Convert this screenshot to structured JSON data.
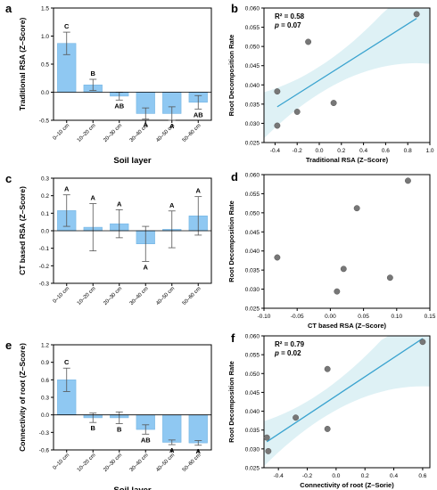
{
  "colors": {
    "bar": "#8fc8f2",
    "bar_edge": "#6aaee0",
    "line": "#3aa3cf",
    "band": "#def1f5",
    "point": "#777777",
    "point_edge": "#555555",
    "axis": "#000000"
  },
  "chart_data": [
    {
      "panel": "a",
      "type": "bar",
      "categories": [
        "0–10 cm",
        "10–20 cm",
        "20–30 cm",
        "30–40 cm",
        "40–50 cm",
        "50–60 cm"
      ],
      "values": [
        0.87,
        0.13,
        -0.07,
        -0.38,
        -0.38,
        -0.18
      ],
      "errors": [
        0.2,
        0.1,
        0.07,
        0.1,
        0.12,
        0.12
      ],
      "letters": [
        "C",
        "B",
        "AB",
        "A",
        "A",
        "AB"
      ],
      "xlabel": "Soil layer",
      "ylabel": "Traditional RSA (Z–Score)",
      "ylim": [
        -0.5,
        1.5
      ],
      "yticks": [
        "-0.5",
        "0.0",
        "0.5",
        "1.0",
        "1.5"
      ]
    },
    {
      "panel": "b",
      "type": "scatter",
      "x": [
        -0.38,
        -0.38,
        -0.2,
        -0.1,
        0.13,
        0.88
      ],
      "y": [
        0.0383,
        0.0294,
        0.033,
        0.0512,
        0.0353,
        0.0584
      ],
      "fit": {
        "x": [
          -0.38,
          0.88
        ],
        "y": [
          0.0343,
          0.0573
        ]
      },
      "stats": [
        "R² = 0.58",
        "p = 0.07"
      ],
      "xlabel": "Traditional RSA (Z–Score)",
      "ylabel": "Root Decomposition Rate",
      "xlim": [
        -0.5,
        1.0
      ],
      "ylim": [
        0.025,
        0.06
      ],
      "xticks": [
        "-0.4",
        "-0.2",
        "0.0",
        "0.2",
        "0.4",
        "0.6",
        "0.8",
        "1.0"
      ],
      "yticks": [
        "0.025",
        "0.030",
        "0.035",
        "0.040",
        "0.045",
        "0.050",
        "0.055",
        "0.060"
      ]
    },
    {
      "panel": "c",
      "type": "bar",
      "categories": [
        "0–10 cm",
        "10–20 cm",
        "20–30 cm",
        "30–40 cm",
        "40–50 cm",
        "50–60 cm"
      ],
      "values": [
        0.115,
        0.02,
        0.04,
        -0.075,
        0.008,
        0.085
      ],
      "errors": [
        0.09,
        0.135,
        0.08,
        0.1,
        0.105,
        0.11
      ],
      "letters": [
        "A",
        "A",
        "A",
        "A",
        "A",
        "A"
      ],
      "xlabel": "",
      "ylabel": "CT based RSA (Z–Score)",
      "ylim": [
        -0.3,
        0.3
      ],
      "yticks": [
        "-0.3",
        "-0.2",
        "-0.1",
        "0.0",
        "0.1",
        "0.2",
        "0.3"
      ]
    },
    {
      "panel": "d",
      "type": "scatter",
      "x": [
        -0.08,
        0.01,
        0.02,
        0.04,
        0.09,
        0.117
      ],
      "y": [
        0.0383,
        0.0294,
        0.0353,
        0.0512,
        0.033,
        0.0584
      ],
      "xlabel": "CT based RSA (Z–Score)",
      "ylabel": "Root Decomposition Rate",
      "xlim": [
        -0.1,
        0.15
      ],
      "ylim": [
        0.025,
        0.06
      ],
      "xticks": [
        "-0.10",
        "-0.05",
        "0.00",
        "0.05",
        "0.10",
        "0.15"
      ],
      "yticks": [
        "0.025",
        "0.030",
        "0.035",
        "0.040",
        "0.045",
        "0.050",
        "0.055",
        "0.060"
      ]
    },
    {
      "panel": "e",
      "type": "bar",
      "categories": [
        "0–10 cm",
        "10–20 cm",
        "20–30 cm",
        "30–40 cm",
        "40–50 cm",
        "50–60 cm"
      ],
      "values": [
        0.6,
        -0.05,
        -0.05,
        -0.25,
        -0.47,
        -0.48
      ],
      "errors": [
        0.2,
        0.08,
        0.1,
        0.08,
        0.04,
        0.04
      ],
      "letters": [
        "C",
        "B",
        "B",
        "AB",
        "A",
        "A"
      ],
      "xlabel": "Soil layer",
      "ylabel": "Connectivity of root (Z–Score)",
      "ylim": [
        -0.6,
        1.2
      ],
      "yticks": [
        "-0.6",
        "-0.3",
        "0.0",
        "0.3",
        "0.6",
        "0.9",
        "1.2"
      ]
    },
    {
      "panel": "f",
      "type": "scatter",
      "x": [
        -0.48,
        -0.47,
        -0.28,
        -0.06,
        -0.06,
        0.6
      ],
      "y": [
        0.033,
        0.0294,
        0.0383,
        0.0512,
        0.0353,
        0.0584
      ],
      "fit": {
        "x": [
          -0.48,
          0.6
        ],
        "y": [
          0.0319,
          0.0593
        ]
      },
      "stats": [
        "R² = 0.79",
        "p = 0.02"
      ],
      "xlabel": "Connectivity of root (Z–Sorie)",
      "ylabel": "Root Decomposition Rate",
      "xlim": [
        -0.5,
        0.65
      ],
      "ylim": [
        0.025,
        0.06
      ],
      "xticks": [
        "-0.4",
        "-0.2",
        "0.0",
        "0.2",
        "0.4",
        "0.6"
      ],
      "yticks": [
        "0.025",
        "0.030",
        "0.035",
        "0.040",
        "0.045",
        "0.050",
        "0.055",
        "0.060"
      ]
    }
  ]
}
